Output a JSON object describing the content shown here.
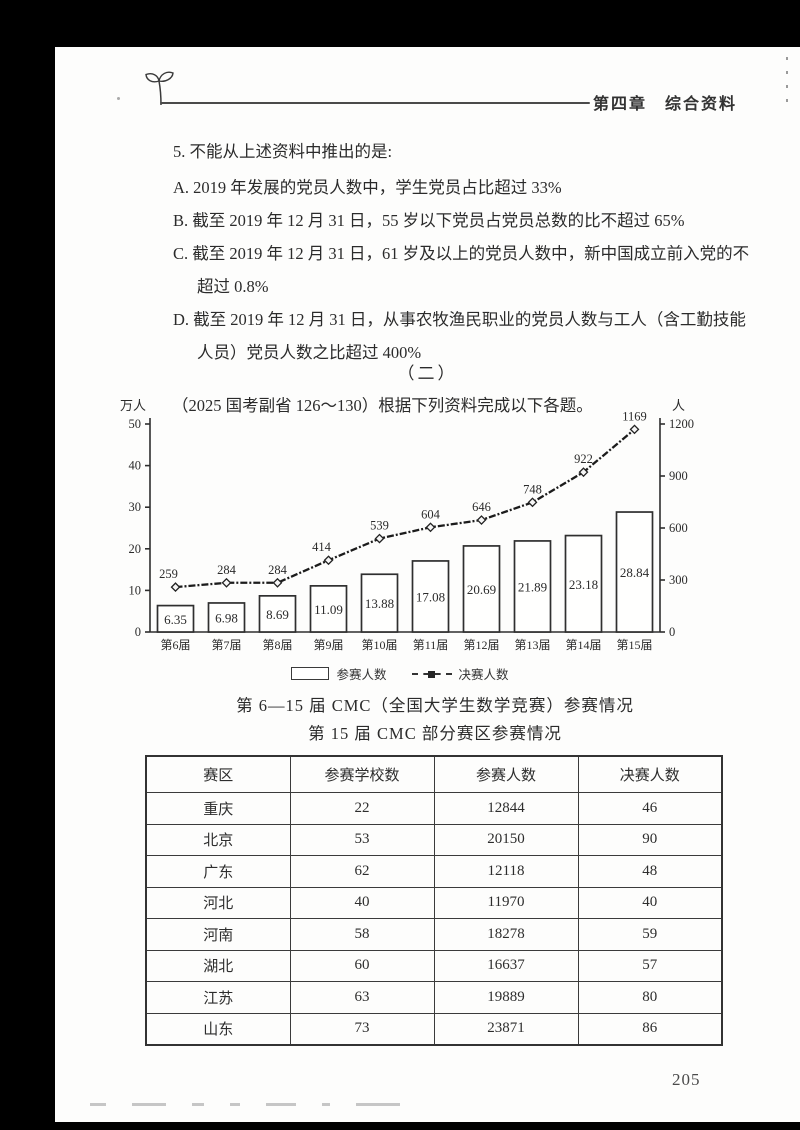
{
  "header": {
    "chapter": "第四章　综合资料"
  },
  "question": {
    "stem": "5. 不能从上述资料中推出的是:",
    "options": [
      {
        "lines": [
          "A. 2019 年发展的党员人数中，学生党员占比超过 33%"
        ]
      },
      {
        "lines": [
          "B. 截至 2019 年 12 月 31 日，55 岁以下党员占党员总数的比不超过 65%"
        ]
      },
      {
        "lines": [
          "C. 截至 2019 年 12 月 31 日，61 岁及以上的党员人数中，新中国成立前入党的不",
          "超过 0.8%"
        ]
      },
      {
        "lines": [
          "D. 截至 2019 年 12 月 31 日，从事农牧渔民职业的党员人数与工人（含工勤技能",
          "人员）党员人数之比超过 400%"
        ]
      }
    ]
  },
  "section": {
    "marker": "（二）",
    "source_line": "（2025 国考副省 126～130）根据下列资料完成以下各题。"
  },
  "chart_data": {
    "type": "bar",
    "title": "第 6—15 届 CMC（全国大学生数学竞赛）参赛情况",
    "categories": [
      "第6届",
      "第7届",
      "第8届",
      "第9届",
      "第10届",
      "第11届",
      "第12届",
      "第13届",
      "第14届",
      "第15届"
    ],
    "series": [
      {
        "name": "参赛人数",
        "type": "bar",
        "axis": "left",
        "values": [
          6.35,
          6.98,
          8.69,
          11.09,
          13.88,
          17.08,
          20.69,
          21.89,
          23.18,
          28.84
        ]
      },
      {
        "name": "决赛人数",
        "type": "line",
        "axis": "right",
        "values": [
          259,
          284,
          284,
          414,
          539,
          604,
          646,
          748,
          922,
          1169
        ]
      }
    ],
    "left_axis": {
      "label": "万人",
      "ticks": [
        0,
        10,
        20,
        30,
        40,
        50
      ],
      "max": 50
    },
    "right_axis": {
      "label": "人",
      "ticks": [
        0,
        300,
        600,
        900,
        1200
      ],
      "max": 1200
    },
    "legend_position": "bottom",
    "grid": false
  },
  "table": {
    "title": "第 15 届 CMC 部分赛区参赛情况",
    "headers": [
      "赛区",
      "参赛学校数",
      "参赛人数",
      "决赛人数"
    ],
    "rows": [
      [
        "重庆",
        "22",
        "12844",
        "46"
      ],
      [
        "北京",
        "53",
        "20150",
        "90"
      ],
      [
        "广东",
        "62",
        "12118",
        "48"
      ],
      [
        "河北",
        "40",
        "11970",
        "40"
      ],
      [
        "河南",
        "58",
        "18278",
        "59"
      ],
      [
        "湖北",
        "60",
        "16637",
        "57"
      ],
      [
        "江苏",
        "63",
        "19889",
        "80"
      ],
      [
        "山东",
        "73",
        "23871",
        "86"
      ]
    ]
  },
  "footer": {
    "page_number": "205"
  },
  "colors": {
    "ink": "#2b2b2b",
    "paper": "#fdfdfc",
    "scan_border": "#000000"
  }
}
